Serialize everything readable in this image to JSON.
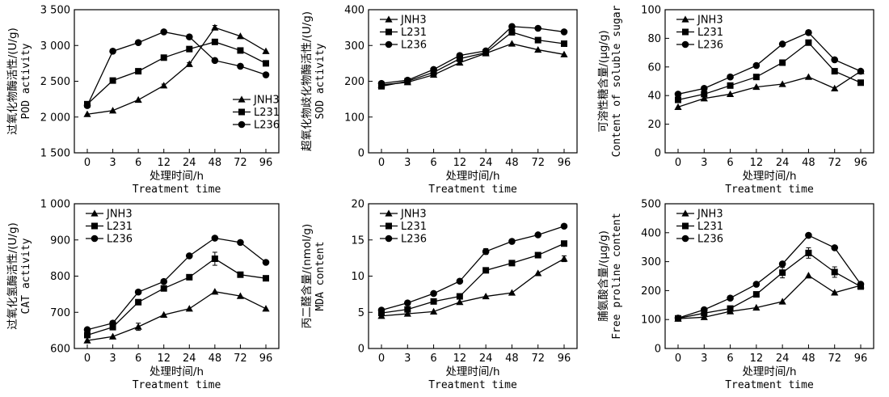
{
  "chart_data": [
    {
      "type": "line",
      "categories": [
        "0",
        "3",
        "6",
        "12",
        "24",
        "48",
        "72",
        "96"
      ],
      "ylim": [
        1500,
        3500
      ],
      "yticks": [
        1500,
        2000,
        2500,
        3000,
        3500
      ],
      "ytick_labels": [
        "1 500",
        "2 000",
        "2 500",
        "3 000",
        "3 500"
      ],
      "ylabel_zh": "过氧化物酶活性/(U/g)",
      "ylabel_en": "POD activity",
      "xlabel_zh": "处理时间/h",
      "xlabel_en": "Treatment time",
      "legend_position": "bottom-right",
      "series": [
        {
          "name": "JNH3",
          "marker": "triangle",
          "values": [
            2040,
            2090,
            2240,
            2440,
            2740,
            3250,
            3130,
            2920
          ],
          "err": [
            0,
            0,
            0,
            20,
            20,
            30,
            0,
            0
          ]
        },
        {
          "name": "L231",
          "marker": "square",
          "values": [
            2180,
            2510,
            2640,
            2830,
            2950,
            3050,
            2930,
            2750
          ],
          "err": [
            0,
            0,
            0,
            0,
            0,
            0,
            0,
            0
          ]
        },
        {
          "name": "L236",
          "marker": "circle",
          "values": [
            2160,
            2920,
            3040,
            3190,
            3120,
            2790,
            2710,
            2590
          ],
          "err": [
            0,
            0,
            0,
            0,
            0,
            0,
            0,
            0
          ]
        }
      ]
    },
    {
      "type": "line",
      "categories": [
        "0",
        "3",
        "6",
        "12",
        "24",
        "48",
        "72",
        "96"
      ],
      "ylim": [
        0,
        400
      ],
      "yticks": [
        0,
        100,
        200,
        300,
        400
      ],
      "ytick_labels": [
        "0",
        "100",
        "200",
        "300",
        "400"
      ],
      "ylabel_zh": "超氧化物歧化物酶活性/(U/g)",
      "ylabel_en": "SOD activity",
      "xlabel_zh": "处理时间/h",
      "xlabel_en": "Treatment time",
      "legend_position": "top-left",
      "series": [
        {
          "name": "JNH3",
          "marker": "triangle",
          "values": [
            190,
            197,
            218,
            252,
            278,
            305,
            288,
            275
          ],
          "err": [
            0,
            0,
            0,
            0,
            0,
            0,
            0,
            0
          ]
        },
        {
          "name": "L231",
          "marker": "square",
          "values": [
            186,
            200,
            225,
            263,
            280,
            337,
            315,
            305
          ],
          "err": [
            0,
            0,
            0,
            0,
            0,
            8,
            0,
            0
          ]
        },
        {
          "name": "L236",
          "marker": "circle",
          "values": [
            194,
            203,
            233,
            272,
            285,
            353,
            348,
            338
          ],
          "err": [
            0,
            0,
            0,
            0,
            0,
            0,
            0,
            0
          ]
        }
      ]
    },
    {
      "type": "line",
      "categories": [
        "0",
        "3",
        "6",
        "12",
        "24",
        "48",
        "72",
        "96"
      ],
      "ylim": [
        0,
        100
      ],
      "yticks": [
        0,
        20,
        40,
        60,
        80,
        100
      ],
      "ytick_labels": [
        "0",
        "20",
        "40",
        "60",
        "80",
        "100"
      ],
      "ylabel_zh": "可溶性糖含量/(μg/g)",
      "ylabel_en": "Content of soluble sugar",
      "xlabel_zh": "处理时间/h",
      "xlabel_en": "Treatment time",
      "legend_position": "top-left",
      "series": [
        {
          "name": "JNH3",
          "marker": "triangle",
          "values": [
            32,
            38,
            41,
            46,
            48,
            53,
            45,
            57
          ],
          "err": [
            0,
            0,
            0,
            0,
            0,
            0,
            0,
            0
          ]
        },
        {
          "name": "L231",
          "marker": "square",
          "values": [
            37,
            41,
            47,
            53,
            63,
            77,
            57,
            49
          ],
          "err": [
            0,
            0,
            0,
            0,
            0,
            0,
            0,
            0
          ]
        },
        {
          "name": "L236",
          "marker": "circle",
          "values": [
            41,
            45,
            53,
            61,
            76,
            84,
            65,
            57
          ],
          "err": [
            0,
            0,
            0,
            0,
            0,
            0,
            0,
            0
          ]
        }
      ]
    },
    {
      "type": "line",
      "categories": [
        "0",
        "3",
        "6",
        "12",
        "24",
        "48",
        "72",
        "96"
      ],
      "ylim": [
        600,
        1000
      ],
      "yticks": [
        600,
        700,
        800,
        900,
        1000
      ],
      "ytick_labels": [
        "600",
        "700",
        "800",
        "900",
        "1 000"
      ],
      "ylabel_zh": "过氧化氢酶活性/(U/g)",
      "ylabel_en": "CAT activity",
      "xlabel_zh": "处理时间/h",
      "xlabel_en": "Treatment time",
      "legend_position": "top-left",
      "series": [
        {
          "name": "JNH3",
          "marker": "triangle",
          "values": [
            622,
            633,
            660,
            693,
            710,
            757,
            745,
            710
          ],
          "err": [
            0,
            0,
            10,
            0,
            0,
            0,
            0,
            0
          ]
        },
        {
          "name": "L231",
          "marker": "square",
          "values": [
            637,
            659,
            728,
            766,
            797,
            848,
            804,
            794
          ],
          "err": [
            0,
            0,
            0,
            0,
            0,
            18,
            0,
            0
          ]
        },
        {
          "name": "L236",
          "marker": "circle",
          "values": [
            652,
            670,
            756,
            785,
            856,
            905,
            893,
            838
          ],
          "err": [
            0,
            0,
            0,
            0,
            0,
            0,
            0,
            0
          ]
        }
      ]
    },
    {
      "type": "line",
      "categories": [
        "0",
        "3",
        "6",
        "12",
        "24",
        "48",
        "72",
        "96"
      ],
      "ylim": [
        0,
        20
      ],
      "yticks": [
        0,
        5,
        10,
        15,
        20
      ],
      "ytick_labels": [
        "0",
        "5",
        "10",
        "15",
        "20"
      ],
      "ylabel_zh": "丙二醛含量/(nmol/g)",
      "ylabel_en": "MDA content",
      "xlabel_zh": "处理时间/h",
      "xlabel_en": "Treatment time",
      "legend_position": "top-left",
      "series": [
        {
          "name": "JNH3",
          "marker": "triangle",
          "values": [
            4.5,
            4.8,
            5.1,
            6.4,
            7.2,
            7.7,
            10.4,
            12.4
          ],
          "err": [
            0,
            0,
            0,
            0,
            0,
            0,
            0,
            0.4
          ]
        },
        {
          "name": "L231",
          "marker": "square",
          "values": [
            4.9,
            5.4,
            6.5,
            7.2,
            10.8,
            11.8,
            12.9,
            14.5
          ],
          "err": [
            0,
            0,
            0,
            0,
            0,
            0,
            0,
            0
          ]
        },
        {
          "name": "L236",
          "marker": "circle",
          "values": [
            5.3,
            6.3,
            7.6,
            9.3,
            13.4,
            14.8,
            15.7,
            16.9
          ],
          "err": [
            0,
            0,
            0,
            0,
            0.4,
            0,
            0,
            0
          ]
        }
      ]
    },
    {
      "type": "line",
      "categories": [
        "0",
        "3",
        "6",
        "12",
        "24",
        "48",
        "72",
        "96"
      ],
      "ylim": [
        0,
        500
      ],
      "yticks": [
        0,
        100,
        200,
        300,
        400,
        500
      ],
      "ytick_labels": [
        "0",
        "100",
        "200",
        "300",
        "400",
        "500"
      ],
      "ylabel_zh": "脯氨酸含量/(μg/g)",
      "ylabel_en": "Free proline content",
      "xlabel_zh": "处理时间/h",
      "xlabel_en": "Treatment time",
      "legend_position": "top-left",
      "series": [
        {
          "name": "JNH3",
          "marker": "triangle",
          "values": [
            103,
            108,
            128,
            141,
            162,
            252,
            193,
            218
          ],
          "err": [
            0,
            0,
            0,
            0,
            0,
            0,
            0,
            0
          ]
        },
        {
          "name": "L231",
          "marker": "square",
          "values": [
            104,
            122,
            138,
            187,
            262,
            330,
            264,
            214
          ],
          "err": [
            0,
            0,
            0,
            0,
            18,
            18,
            18,
            0
          ]
        },
        {
          "name": "L236",
          "marker": "circle",
          "values": [
            105,
            134,
            174,
            222,
            292,
            391,
            348,
            222
          ],
          "err": [
            0,
            0,
            0,
            0,
            0,
            0,
            0,
            0
          ]
        }
      ]
    }
  ]
}
